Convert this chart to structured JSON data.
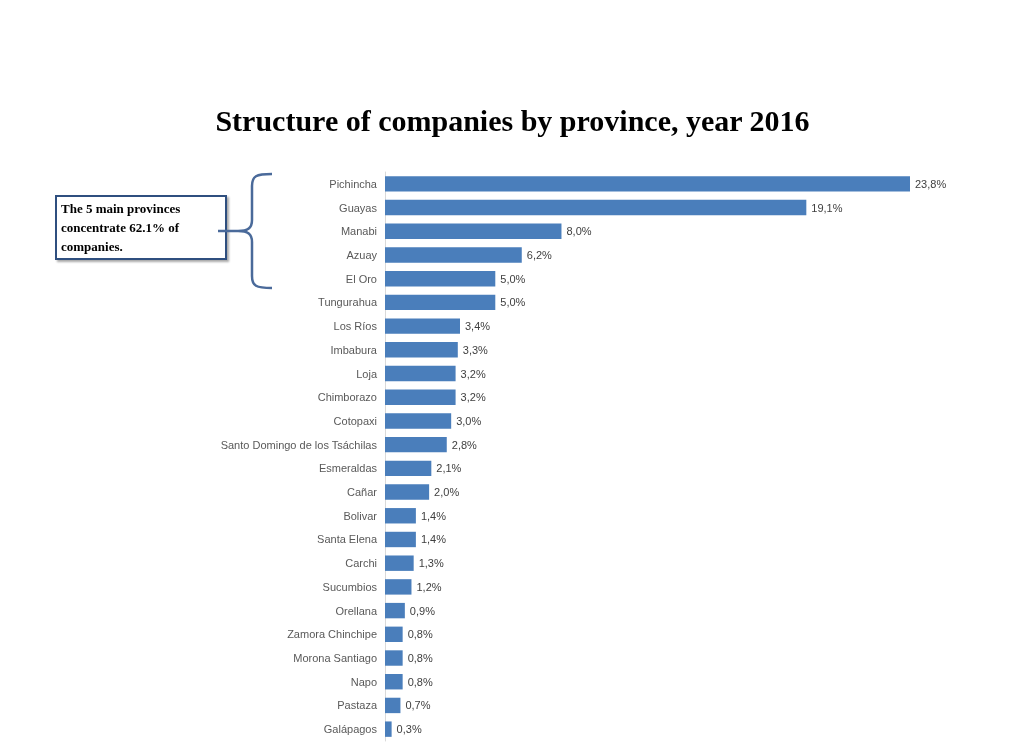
{
  "chart_data": {
    "type": "bar",
    "orientation": "horizontal",
    "title": "Structure of companies by province, year 2016",
    "categories": [
      "Pichincha",
      "Guayas",
      "Manabi",
      "Azuay",
      "El Oro",
      "Tungurahua",
      "Los Ríos",
      "Imbabura",
      "Loja",
      "Chimborazo",
      "Cotopaxi",
      "Santo Domingo de los Tsáchilas",
      "Esmeraldas",
      "Cañar",
      "Bolivar",
      "Santa Elena",
      "Carchi",
      "Sucumbios",
      "Orellana",
      "Zamora Chinchipe",
      "Morona Santiago",
      "Napo",
      "Pastaza",
      "Galápagos"
    ],
    "values": [
      23.8,
      19.1,
      8.0,
      6.2,
      5.0,
      5.0,
      3.4,
      3.3,
      3.2,
      3.2,
      3.0,
      2.8,
      2.1,
      2.0,
      1.4,
      1.4,
      1.3,
      1.2,
      0.9,
      0.8,
      0.8,
      0.8,
      0.7,
      0.3
    ],
    "value_labels": [
      "23,8%",
      "19,1%",
      "8,0%",
      "6,2%",
      "5,0%",
      "5,0%",
      "3,4%",
      "3,3%",
      "3,2%",
      "3,2%",
      "3,0%",
      "2,8%",
      "2,1%",
      "2,0%",
      "1,4%",
      "1,4%",
      "1,3%",
      "1,2%",
      "0,9%",
      "0,8%",
      "0,8%",
      "0,8%",
      "0,7%",
      "0,3%"
    ],
    "color": "#4a7ebb",
    "annotations": [
      "The 5 main provinces concentrate 62.1% of companies."
    ]
  }
}
